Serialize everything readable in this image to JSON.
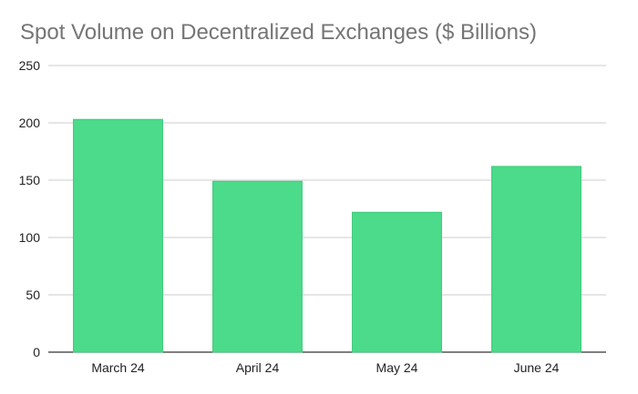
{
  "chart_data": {
    "type": "bar",
    "title": "Spot Volume on Decentralized Exchanges ($ Billions)",
    "categories": [
      "March 24",
      "April 24",
      "May 24",
      "June 24"
    ],
    "values": [
      203,
      149,
      122,
      162
    ],
    "xlabel": "",
    "ylabel": "",
    "ylim": [
      0,
      250
    ],
    "yticks": [
      "0",
      "50",
      "100",
      "150",
      "200",
      "250"
    ],
    "grid": true,
    "legend": "none",
    "bar_color": "#4bdb8a",
    "bar_stroke": "#3fca7b"
  }
}
